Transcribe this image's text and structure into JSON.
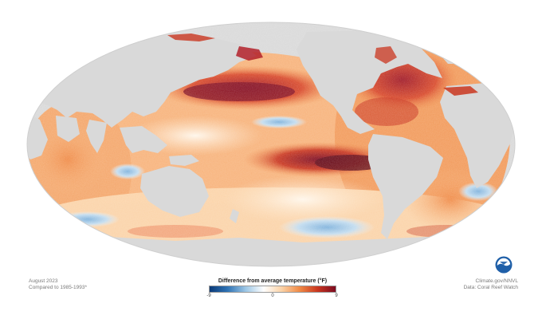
{
  "map": {
    "period": "August 2023",
    "baseline": "Compared to 1985-1993*",
    "legend": {
      "title": "Difference from average temperature (°F)",
      "min_label": "-9",
      "mid_label": "0",
      "max_label": "9",
      "scale_min": -9,
      "scale_max": 9,
      "colors": [
        "#0b3a78",
        "#2f73b5",
        "#9cc6e5",
        "#ffffff",
        "#fbd3a8",
        "#f08a46",
        "#c9361f",
        "#7c0b21"
      ]
    },
    "credit": {
      "line1": "Climate.gov/NNVL",
      "line2": "Data: Coral Reef Watch"
    },
    "logo": {
      "icon": "noaa-logo-icon",
      "color": "#1f5fa8"
    },
    "land_color": "#d9d9d9"
  }
}
